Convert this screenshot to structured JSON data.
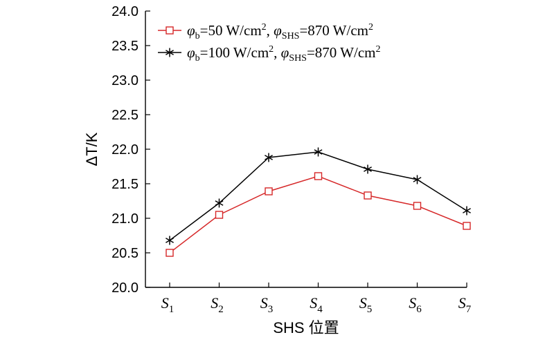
{
  "chart_data": {
    "type": "line",
    "categories": [
      {
        "base": "S",
        "sub": "1"
      },
      {
        "base": "S",
        "sub": "2"
      },
      {
        "base": "S",
        "sub": "3"
      },
      {
        "base": "S",
        "sub": "4"
      },
      {
        "base": "S",
        "sub": "5"
      },
      {
        "base": "S",
        "sub": "6"
      },
      {
        "base": "S",
        "sub": "7"
      }
    ],
    "xlabel": "SHS 位置",
    "ylabel": "ΔT/K",
    "ylim": [
      20.0,
      24.0
    ],
    "yticks": [
      "20.0",
      "20.5",
      "21.0",
      "21.5",
      "22.0",
      "22.5",
      "23.0",
      "23.5",
      "24.0"
    ],
    "grid": false,
    "legend_position": "top-left",
    "series": [
      {
        "name": "φb=50 W/cm², φSHS=870 W/cm²",
        "legend": {
          "b_value": "50",
          "shs_value": "870",
          "unit": "W/cm",
          "exp": "2"
        },
        "color": "#d62728",
        "marker": "square",
        "values": [
          20.5,
          21.05,
          21.39,
          21.61,
          21.33,
          21.18,
          20.89
        ]
      },
      {
        "name": "φb=100 W/cm², φSHS=870 W/cm²",
        "legend": {
          "b_value": "100",
          "shs_value": "870",
          "unit": "W/cm",
          "exp": "2"
        },
        "color": "#000000",
        "marker": "asterisk",
        "values": [
          20.68,
          21.22,
          21.88,
          21.96,
          21.71,
          21.56,
          21.11
        ]
      }
    ]
  }
}
